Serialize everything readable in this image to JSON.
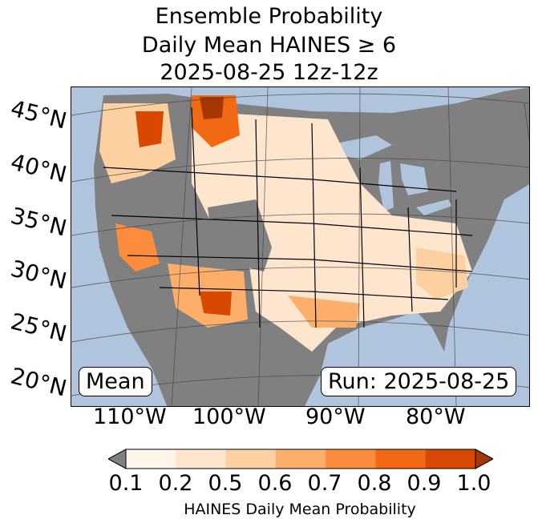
{
  "title": {
    "line1": "Ensemble Probability",
    "line2": "Daily Mean HAINES ≥ 6",
    "line3": "2025-08-25 12z-12z"
  },
  "map": {
    "latitude_labels": [
      "45°N",
      "40°N",
      "35°N",
      "30°N",
      "25°N",
      "20°N"
    ],
    "longitude_labels": [
      "110°W",
      "100°W",
      "90°W",
      "80°W"
    ],
    "stat_label": "Mean",
    "run_label": "Run: 2025-08-25",
    "colors": {
      "ocean": "#b0c4de",
      "land_missing": "#808080",
      "border": "#000000"
    }
  },
  "colorbar": {
    "ticks": [
      "0.1",
      "0.2",
      "0.5",
      "0.6",
      "0.7",
      "0.8",
      "0.9",
      "1.0"
    ],
    "colors": [
      "#fff5eb",
      "#fee6ce",
      "#fdd0a2",
      "#fdae6b",
      "#fd8d3c",
      "#f16913",
      "#d94801"
    ],
    "under_color": "#808080",
    "over_color": "#a63603",
    "label": "HAINES Daily Mean Probability"
  }
}
